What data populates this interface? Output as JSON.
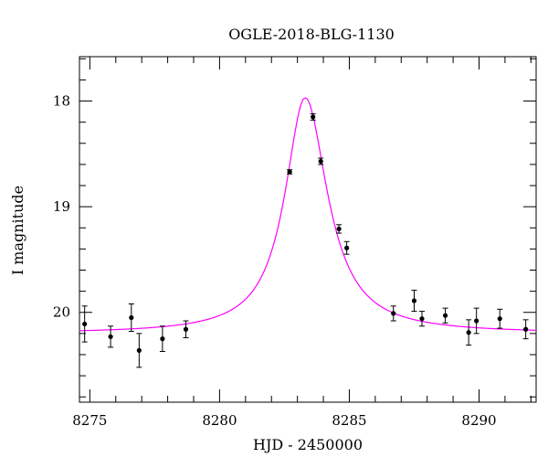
{
  "chart_data": {
    "type": "scatter",
    "title": "OGLE-2018-BLG-1130",
    "xlabel": "HJD - 2450000",
    "ylabel": "I magnitude",
    "xlim": [
      8274.6,
      8292.2
    ],
    "ylim": [
      20.85,
      17.58
    ],
    "y_inverted": true,
    "grid": false,
    "x_major_ticks": [
      8275,
      8280,
      8285,
      8290
    ],
    "x_minor_step": 1,
    "y_major_ticks": [
      18,
      19,
      20
    ],
    "y_minor_step": 0.2,
    "points": [
      {
        "x": 8274.8,
        "y": 20.11,
        "err": 0.17
      },
      {
        "x": 8275.8,
        "y": 20.23,
        "err": 0.1
      },
      {
        "x": 8276.6,
        "y": 20.05,
        "err": 0.13
      },
      {
        "x": 8276.9,
        "y": 20.36,
        "err": 0.16
      },
      {
        "x": 8277.8,
        "y": 20.25,
        "err": 0.12
      },
      {
        "x": 8278.7,
        "y": 20.16,
        "err": 0.08
      },
      {
        "x": 8282.7,
        "y": 18.67,
        "err": 0.02
      },
      {
        "x": 8283.6,
        "y": 18.15,
        "err": 0.03
      },
      {
        "x": 8283.9,
        "y": 18.57,
        "err": 0.03
      },
      {
        "x": 8284.6,
        "y": 19.21,
        "err": 0.04
      },
      {
        "x": 8284.9,
        "y": 19.39,
        "err": 0.06
      },
      {
        "x": 8286.7,
        "y": 20.01,
        "err": 0.07
      },
      {
        "x": 8287.5,
        "y": 19.89,
        "err": 0.1
      },
      {
        "x": 8287.8,
        "y": 20.06,
        "err": 0.07
      },
      {
        "x": 8288.7,
        "y": 20.03,
        "err": 0.07
      },
      {
        "x": 8289.6,
        "y": 20.19,
        "err": 0.12
      },
      {
        "x": 8289.9,
        "y": 20.08,
        "err": 0.12
      },
      {
        "x": 8290.8,
        "y": 20.06,
        "err": 0.09
      },
      {
        "x": 8291.8,
        "y": 20.16,
        "err": 0.09
      }
    ],
    "model_curve": {
      "type": "line",
      "color": "#ff00ff",
      "peak_x": 8283.3,
      "peak_mag": 17.97,
      "baseline_mag": 20.2,
      "width_left": 0.95,
      "width_right": 1.05
    },
    "point_color": "#000000"
  }
}
